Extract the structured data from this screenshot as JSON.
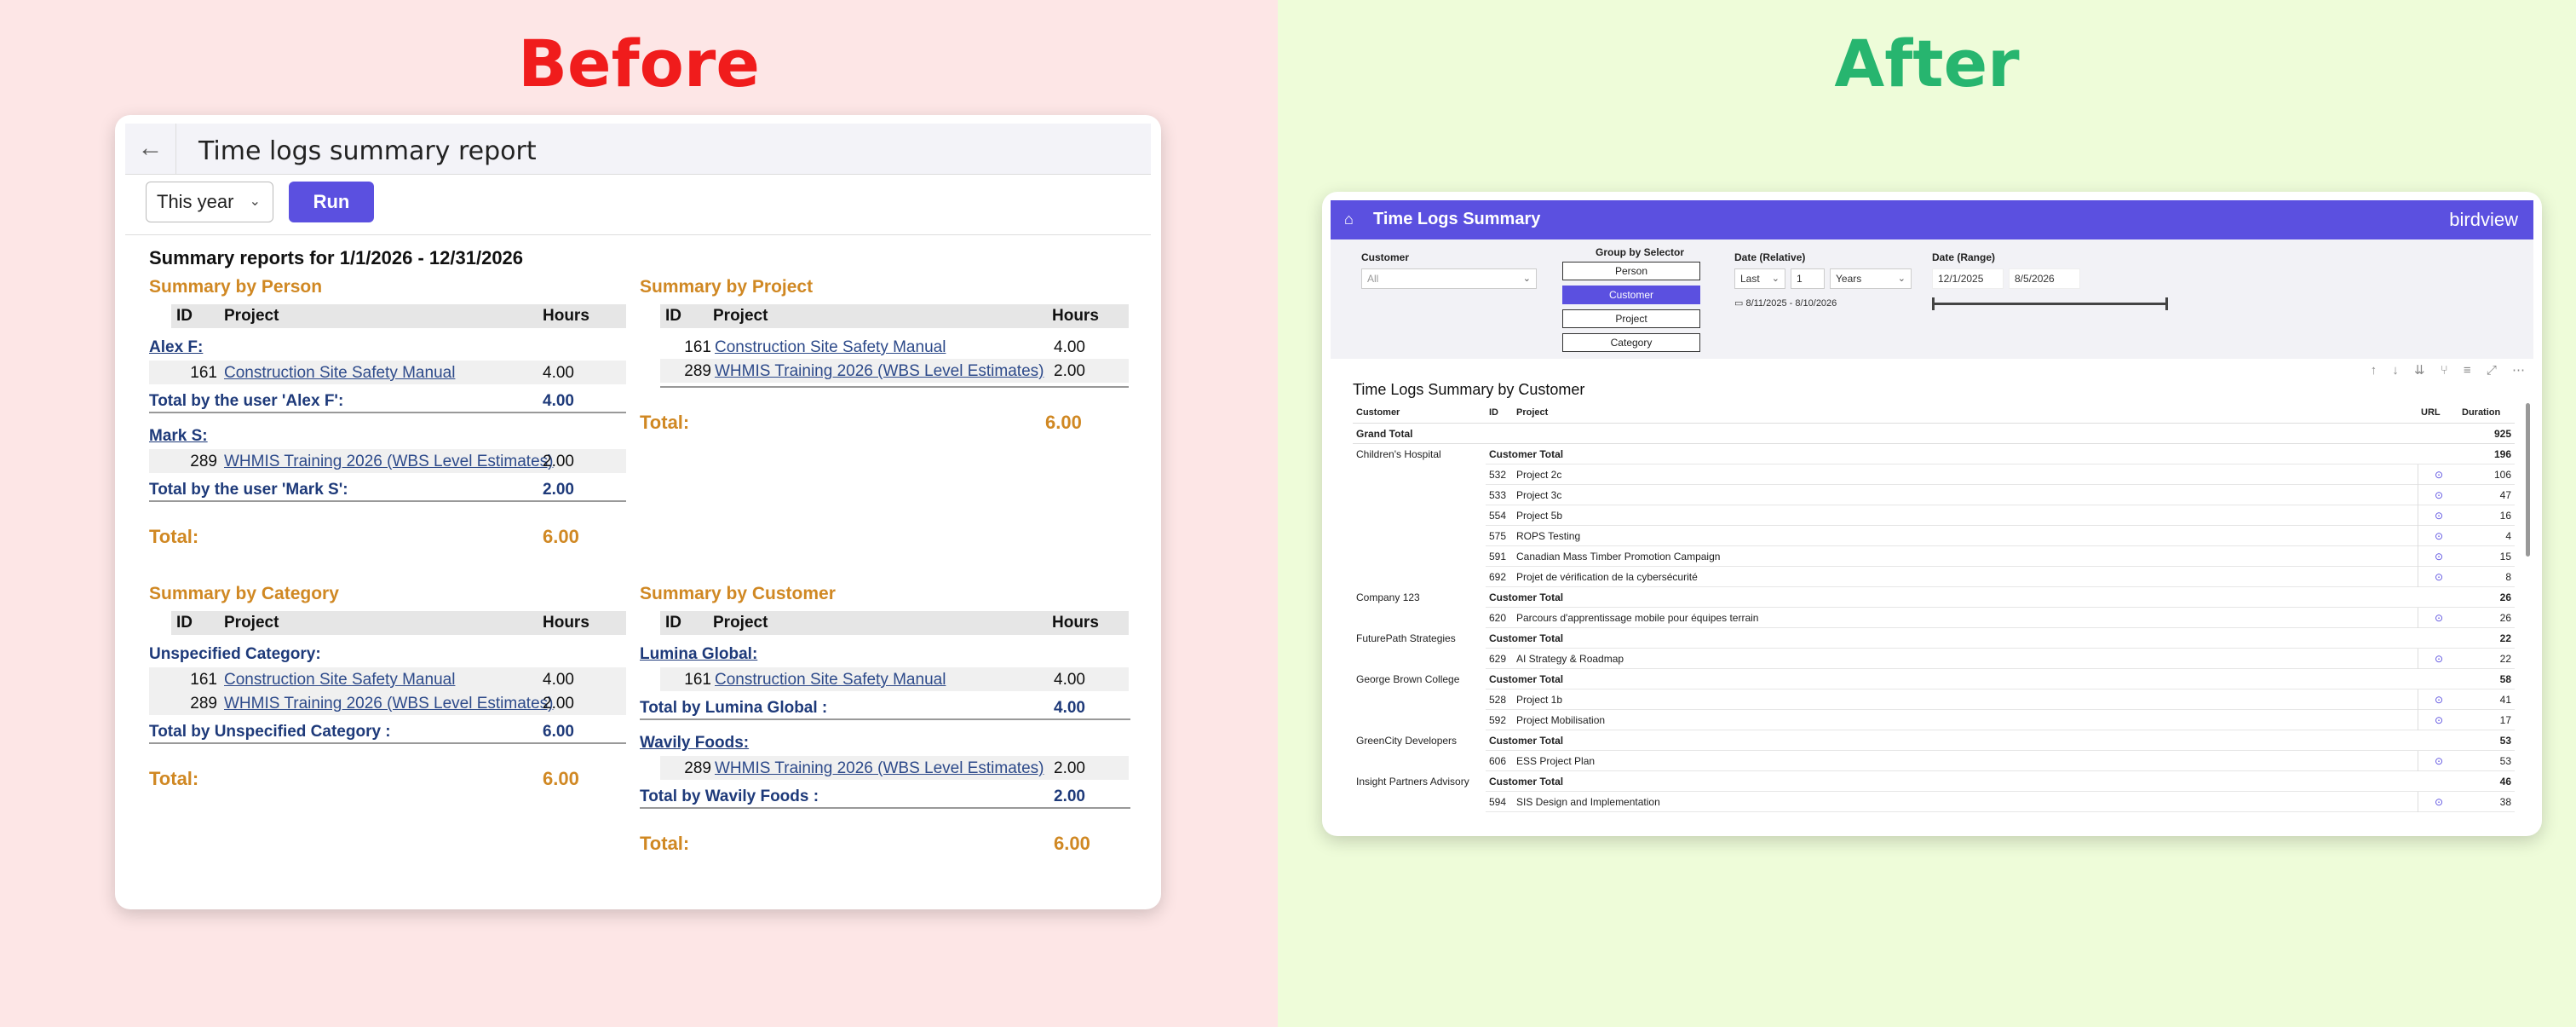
{
  "before": {
    "label": "Before",
    "back_icon": "←",
    "page_title": "Time logs summary report",
    "period_select": "This year",
    "run_label": "Run",
    "report_title": "Summary reports  for 1/1/2026 - 12/31/2026",
    "col_id": "ID",
    "col_project": "Project",
    "col_hours": "Hours",
    "total_label": "Total:",
    "by_person": {
      "title": "Summary by Person",
      "groups": [
        {
          "name": "Alex F:",
          "rows": [
            {
              "id": "161",
              "project": "Construction Site Safety Manual",
              "hours": "4.00"
            }
          ],
          "subtotal_label": "Total by the user 'Alex F':",
          "subtotal": "4.00"
        },
        {
          "name": "Mark S:",
          "rows": [
            {
              "id": "289",
              "project": "WHMIS Training 2026 (WBS Level Estimates)",
              "hours": "2.00"
            }
          ],
          "subtotal_label": "Total by the user 'Mark S':",
          "subtotal": "2.00"
        }
      ],
      "total": "6.00"
    },
    "by_project": {
      "title": "Summary by Project",
      "rows": [
        {
          "id": "161",
          "project": "Construction Site Safety Manual",
          "hours": "4.00"
        },
        {
          "id": "289",
          "project": "WHMIS Training 2026 (WBS Level Estimates)",
          "hours": "2.00"
        }
      ],
      "total": "6.00"
    },
    "by_category": {
      "title": "Summary by Category",
      "groups": [
        {
          "name": "Unspecified Category:",
          "rows": [
            {
              "id": "161",
              "project": "Construction Site Safety Manual",
              "hours": "4.00"
            },
            {
              "id": "289",
              "project": "WHMIS Training 2026 (WBS Level Estimates)",
              "hours": "2.00"
            }
          ],
          "subtotal_label": "Total by Unspecified Category :",
          "subtotal": "6.00"
        }
      ],
      "total": "6.00"
    },
    "by_customer": {
      "title": "Summary by Customer",
      "groups": [
        {
          "name": "Lumina Global:",
          "rows": [
            {
              "id": "161",
              "project": "Construction Site Safety Manual",
              "hours": "4.00"
            }
          ],
          "subtotal_label": "Total by Lumina Global :",
          "subtotal": "4.00"
        },
        {
          "name": "Wavily Foods:",
          "rows": [
            {
              "id": "289",
              "project": "WHMIS Training 2026 (WBS Level Estimates)",
              "hours": "2.00"
            }
          ],
          "subtotal_label": "Total by Wavily Foods :",
          "subtotal": "2.00"
        }
      ],
      "total": "6.00"
    }
  },
  "after": {
    "label": "After",
    "header_title": "Time Logs Summary",
    "brand": "birdview",
    "filters": {
      "customer_label": "Customer",
      "customer_value": "All",
      "group_label": "Group by Selector",
      "group_options": [
        "Person",
        "Customer",
        "Project",
        "Category"
      ],
      "group_selected": "Customer",
      "date_rel_label": "Date (Relative)",
      "date_rel_mode": "Last",
      "date_rel_n": "1",
      "date_rel_unit": "Years",
      "date_rel_range": "8/11/2025 - 8/10/2026",
      "date_range_label": "Date (Range)",
      "date_from": "12/1/2025",
      "date_to": "8/5/2026"
    },
    "table_title": "Time Logs Summary by Customer",
    "columns": {
      "customer": "Customer",
      "id": "ID",
      "project": "Project",
      "url": "URL",
      "duration": "Duration"
    },
    "grand_total_label": "Grand Total",
    "grand_total": "925",
    "customer_total_label": "Customer Total",
    "rows": [
      {
        "customer": "Children's Hospital",
        "total": "196",
        "items": [
          {
            "id": "532",
            "project": "Project 2c",
            "duration": "106"
          },
          {
            "id": "533",
            "project": "Project 3c",
            "duration": "47"
          },
          {
            "id": "554",
            "project": "Project 5b",
            "duration": "16"
          },
          {
            "id": "575",
            "project": "ROPS Testing",
            "duration": "4"
          },
          {
            "id": "591",
            "project": "Canadian Mass Timber Promotion Campaign",
            "duration": "15"
          },
          {
            "id": "692",
            "project": "Projet de vérification de la cybersécurité",
            "duration": "8"
          }
        ]
      },
      {
        "customer": "Company 123",
        "total": "26",
        "items": [
          {
            "id": "620",
            "project": "Parcours d'apprentissage mobile pour équipes terrain",
            "duration": "26"
          }
        ]
      },
      {
        "customer": "FuturePath Strategies",
        "total": "22",
        "items": [
          {
            "id": "629",
            "project": "AI Strategy & Roadmap",
            "duration": "22"
          }
        ]
      },
      {
        "customer": "George Brown College",
        "total": "58",
        "items": [
          {
            "id": "528",
            "project": "Project 1b",
            "duration": "41"
          },
          {
            "id": "592",
            "project": "Project Mobilisation",
            "duration": "17"
          }
        ]
      },
      {
        "customer": "GreenCity Developers",
        "total": "53",
        "items": [
          {
            "id": "606",
            "project": "ESS Project Plan",
            "duration": "53"
          }
        ]
      },
      {
        "customer": "Insight Partners Advisory",
        "total": "46",
        "items": [
          {
            "id": "594",
            "project": "SIS Design and Implementation",
            "duration": "38"
          }
        ]
      }
    ]
  }
}
